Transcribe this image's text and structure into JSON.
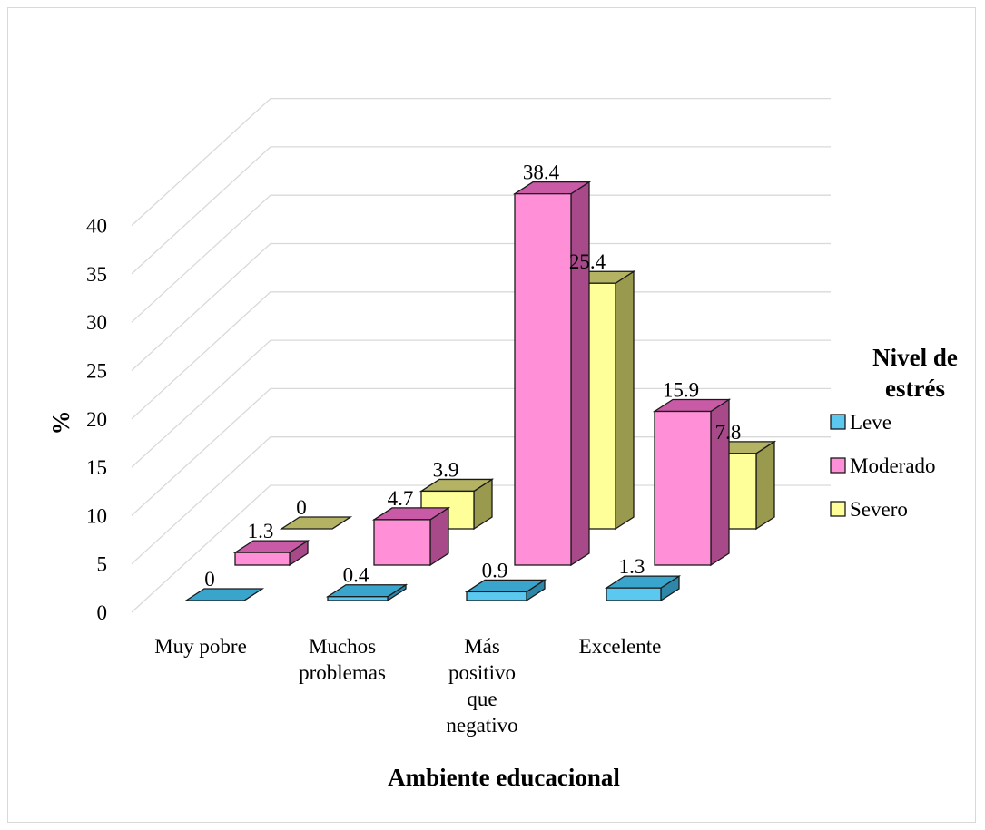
{
  "chart_data": {
    "type": "bar",
    "title": "",
    "xlabel": "Ambiente educacional",
    "ylabel": "%",
    "ylim": [
      0,
      40
    ],
    "yticks": [
      0,
      5,
      10,
      15,
      20,
      25,
      30,
      35,
      40
    ],
    "grid": true,
    "legend_position": "right",
    "legend_title": "Nivel de estrés",
    "categories": [
      [
        "Muy pobre"
      ],
      [
        "Muchos",
        "problemas"
      ],
      [
        "Más",
        "positivo",
        "que",
        "negativo"
      ],
      [
        "Excelente"
      ]
    ],
    "series": [
      {
        "name": "Leve",
        "values": [
          0,
          0.4,
          0.9,
          1.3
        ],
        "color": "#5bc8f0",
        "side_color": "#2e86a8",
        "top_color": "#3aa5cc"
      },
      {
        "name": "Moderado",
        "values": [
          1.3,
          4.7,
          38.4,
          15.9
        ],
        "color": "#ff8fd6",
        "side_color": "#a84a8a",
        "top_color": "#c95aa6"
      },
      {
        "name": "Severo",
        "values": [
          0,
          3.9,
          25.4,
          7.8
        ],
        "color": "#ffff99",
        "side_color": "#9a9a4e",
        "top_color": "#b3b363"
      }
    ],
    "data_labels": [
      [
        "0",
        "0.4",
        "0.9",
        "1.3"
      ],
      [
        "1.3",
        "4.7",
        "38.4",
        "15.9"
      ],
      [
        "0",
        "3.9",
        "25.4",
        "7.8"
      ]
    ]
  }
}
